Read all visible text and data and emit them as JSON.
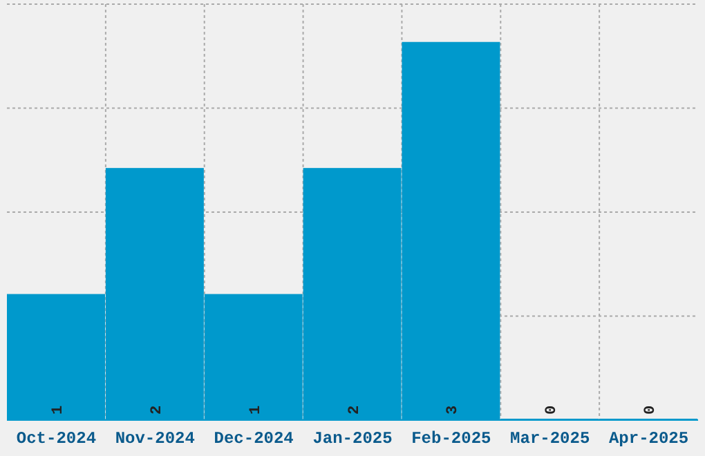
{
  "chart_data": {
    "type": "bar",
    "categories": [
      "Oct-2024",
      "Nov-2024",
      "Dec-2024",
      "Jan-2025",
      "Feb-2025",
      "Mar-2025",
      "Apr-2025"
    ],
    "values": [
      1,
      2,
      1,
      2,
      3,
      0,
      0
    ],
    "color": "#0099cc",
    "data_labels": true,
    "grid": true,
    "tick_labels": "x",
    "ylim": [
      0,
      3.3
    ]
  }
}
